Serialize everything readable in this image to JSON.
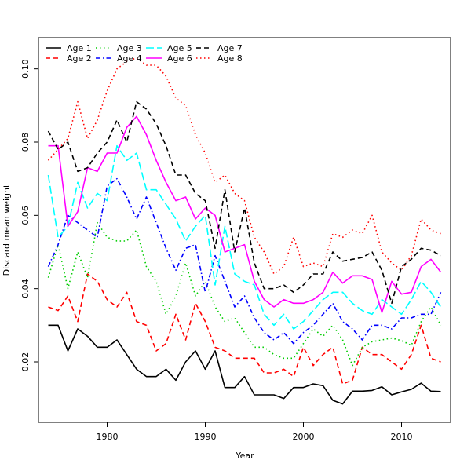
{
  "chart_data": {
    "type": "line",
    "title": "",
    "xlabel": "Year",
    "ylabel": "Discard mean weight",
    "xlim": [
      1973,
      2015
    ],
    "ylim": [
      0.0035,
      0.1085
    ],
    "x_ticks": [
      1980,
      1990,
      2000,
      2010
    ],
    "x_tick_labels": [
      "1980",
      "1990",
      "2000",
      "2010"
    ],
    "y_ticks": [
      0.02,
      0.04,
      0.06,
      0.08,
      0.1
    ],
    "y_tick_labels": [
      "0.02",
      "0.04",
      "0.06",
      "0.08",
      "0.10"
    ],
    "legend_position": "top-left",
    "x": [
      1974,
      1975,
      1976,
      1977,
      1978,
      1979,
      1980,
      1981,
      1982,
      1983,
      1984,
      1985,
      1986,
      1987,
      1988,
      1989,
      1990,
      1991,
      1992,
      1993,
      1994,
      1995,
      1996,
      1997,
      1998,
      1999,
      2000,
      2001,
      2002,
      2003,
      2004,
      2005,
      2006,
      2007,
      2008,
      2009,
      2010,
      2011,
      2012,
      2013,
      2014
    ],
    "series": [
      {
        "name": "Age 1",
        "color": "#000000",
        "dash": "solid",
        "values": [
          0.03,
          0.03,
          0.023,
          0.029,
          0.027,
          0.024,
          0.024,
          0.026,
          0.022,
          0.018,
          0.016,
          0.016,
          0.018,
          0.015,
          0.02,
          0.023,
          0.018,
          0.023,
          0.013,
          0.013,
          0.016,
          0.011,
          0.011,
          0.011,
          0.01,
          0.013,
          0.013,
          0.014,
          0.0135,
          0.0095,
          0.0085,
          0.012,
          0.012,
          0.0122,
          0.0132,
          0.011,
          0.0118,
          0.0125,
          0.0142,
          0.012,
          0.0119
        ]
      },
      {
        "name": "Age 2",
        "color": "#ff0000",
        "dash": "dashed",
        "values": [
          0.035,
          0.034,
          0.038,
          0.031,
          0.044,
          0.042,
          0.037,
          0.035,
          0.039,
          0.031,
          0.03,
          0.023,
          0.025,
          0.033,
          0.026,
          0.036,
          0.031,
          0.024,
          0.023,
          0.021,
          0.021,
          0.021,
          0.017,
          0.017,
          0.018,
          0.016,
          0.024,
          0.019,
          0.022,
          0.024,
          0.014,
          0.015,
          0.024,
          0.022,
          0.022,
          0.02,
          0.018,
          0.022,
          0.03,
          0.021,
          0.02
        ]
      },
      {
        "name": "Age 3",
        "color": "#00cd00",
        "dash": "dotted",
        "values": [
          0.043,
          0.052,
          0.04,
          0.05,
          0.043,
          0.058,
          0.054,
          0.053,
          0.053,
          0.056,
          0.046,
          0.042,
          0.033,
          0.038,
          0.047,
          0.038,
          0.042,
          0.035,
          0.031,
          0.032,
          0.028,
          0.024,
          0.024,
          0.022,
          0.021,
          0.021,
          0.025,
          0.029,
          0.027,
          0.03,
          0.026,
          0.019,
          0.024,
          0.0255,
          0.026,
          0.0265,
          0.0258,
          0.0245,
          0.031,
          0.035,
          0.03
        ]
      },
      {
        "name": "Age 4",
        "color": "#0000ff",
        "dash": "dashdot",
        "values": [
          0.046,
          0.052,
          0.06,
          0.058,
          0.056,
          0.054,
          0.068,
          0.07,
          0.065,
          0.059,
          0.065,
          0.058,
          0.051,
          0.045,
          0.051,
          0.052,
          0.039,
          0.049,
          0.042,
          0.035,
          0.038,
          0.032,
          0.028,
          0.026,
          0.028,
          0.025,
          0.028,
          0.03,
          0.033,
          0.036,
          0.031,
          0.029,
          0.026,
          0.03,
          0.03,
          0.029,
          0.032,
          0.032,
          0.033,
          0.033,
          0.039
        ]
      },
      {
        "name": "Age 5",
        "color": "#00ffff",
        "dash": "longdash",
        "values": [
          0.071,
          0.054,
          0.057,
          0.069,
          0.062,
          0.066,
          0.064,
          0.079,
          0.075,
          0.077,
          0.067,
          0.067,
          0.063,
          0.059,
          0.053,
          0.057,
          0.06,
          0.041,
          0.057,
          0.044,
          0.042,
          0.041,
          0.033,
          0.03,
          0.033,
          0.029,
          0.031,
          0.034,
          0.037,
          0.039,
          0.039,
          0.036,
          0.034,
          0.033,
          0.037,
          0.035,
          0.033,
          0.037,
          0.042,
          0.039,
          0.035
        ]
      },
      {
        "name": "Age 6",
        "color": "#ff00ff",
        "dash": "solid",
        "values": [
          0.079,
          0.079,
          0.057,
          0.061,
          0.073,
          0.072,
          0.077,
          0.077,
          0.084,
          0.087,
          0.082,
          0.075,
          0.069,
          0.064,
          0.065,
          0.059,
          0.062,
          0.06,
          0.05,
          0.051,
          0.052,
          0.042,
          0.037,
          0.035,
          0.037,
          0.036,
          0.036,
          0.037,
          0.039,
          0.0445,
          0.0415,
          0.0435,
          0.0435,
          0.0425,
          0.0335,
          0.042,
          0.0385,
          0.039,
          0.046,
          0.048,
          0.0445
        ]
      },
      {
        "name": "Age 7",
        "color": "#000000",
        "dash": "dashed",
        "values": [
          0.083,
          0.078,
          0.08,
          0.072,
          0.073,
          0.077,
          0.08,
          0.086,
          0.08,
          0.091,
          0.089,
          0.085,
          0.079,
          0.071,
          0.071,
          0.066,
          0.064,
          0.051,
          0.067,
          0.05,
          0.062,
          0.047,
          0.04,
          0.04,
          0.041,
          0.039,
          0.041,
          0.044,
          0.044,
          0.05,
          0.0475,
          0.048,
          0.0485,
          0.05,
          0.045,
          0.036,
          0.046,
          0.048,
          0.051,
          0.0505,
          0.049
        ]
      },
      {
        "name": "Age 8",
        "color": "#ff0000",
        "dash": "dotted",
        "values": [
          0.075,
          0.078,
          0.081,
          0.091,
          0.081,
          0.086,
          0.094,
          0.1,
          0.102,
          0.103,
          0.101,
          0.101,
          0.098,
          0.092,
          0.09,
          0.082,
          0.077,
          0.069,
          0.071,
          0.066,
          0.064,
          0.054,
          0.05,
          0.044,
          0.046,
          0.054,
          0.046,
          0.047,
          0.046,
          0.055,
          0.054,
          0.056,
          0.055,
          0.06,
          0.05,
          0.047,
          0.045,
          0.049,
          0.059,
          0.056,
          0.055
        ]
      }
    ]
  }
}
